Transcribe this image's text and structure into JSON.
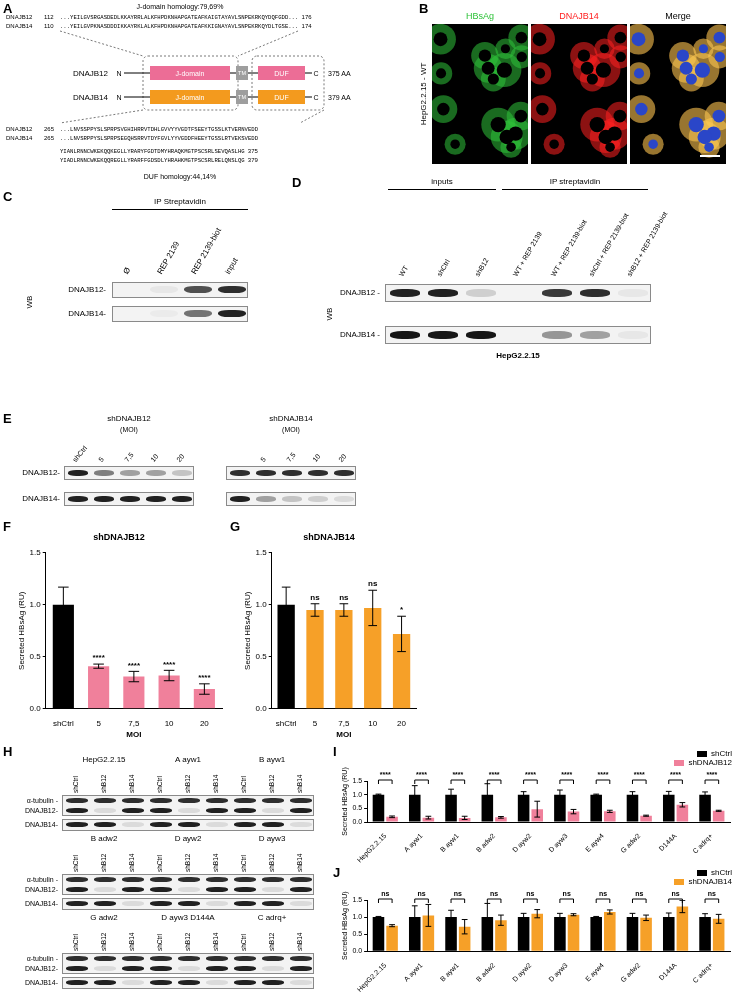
{
  "A": {
    "letter": "A",
    "top_title": "J-domain homology:79,69%",
    "top_alignment": [
      {
        "name": "DNAJB12",
        "start": 112,
        "seq": "...YEILGVSRGASDEDLKKAYRRLALKFHPDKNHAPGATEAFKAIGTAYAVLSNPEKRKQYDQFGDD...",
        "end": 176
      },
      {
        "name": "DNAJB14",
        "start": 110,
        "seq": "...YEILGVPKNASDDDIKKAYRKLALKFHPDKNHAPGATEAFKKIGNAYAVLSNPEKRKQYDLTGSE...",
        "end": 174
      }
    ],
    "proteins": [
      {
        "name": "DNAJB12",
        "length": "375 AA",
        "color": "#ec6d96"
      },
      {
        "name": "DNAJB14",
        "length": "379 AA",
        "color": "#f39a1e"
      }
    ],
    "domains": [
      "J-domain",
      "TM",
      "DUF"
    ],
    "termini": [
      "N",
      "C"
    ],
    "bottom_alignment": [
      {
        "name": "DNAJB12",
        "start": 265,
        "seq": "...LNVSSPPYSLSPRPSVGHIHRRVTDHLGVVYYVGDTFSEEYTGSSLKTVERNVEDD",
        "seq2": "YIANLRNNCWKEKQQKEGLLYRARYFGDTDMYHRAQKMGTPSCSRLSEVQASLHG",
        "end": 375
      },
      {
        "name": "DNAJB14",
        "start": 265,
        "seq": "...LNVSRPPYSLSPRPSEGQHSRRVTDYFGVLYYVGDDFHEEYTGSSLRTVEKSVEDD",
        "seq2": "YIADLRNNCWKEKQQREGLLYRARFFGDSDLYHRAHKMGTPSCSRLRELQNSLQG",
        "end": 379
      }
    ],
    "bottom_title": "DUF homology:44,14%"
  },
  "B": {
    "letter": "B",
    "side_label": "HepG2.2.15 - WT",
    "images": [
      {
        "title": "HBsAg",
        "color": "#2fc23a"
      },
      {
        "title": "DNAJB14",
        "color": "#ff2020"
      },
      {
        "title": "Merge",
        "color": "#000000"
      }
    ]
  },
  "C": {
    "letter": "C",
    "header": "IP Streptavidin",
    "side_label": "WB",
    "lanes": [
      "Ø",
      "REP 2139",
      "REP 2139-biot",
      "input"
    ],
    "rows": [
      {
        "label": "DNAJB12-",
        "bands": [
          0,
          0.05,
          0.7,
          0.85
        ]
      },
      {
        "label": "DNAJB14-",
        "bands": [
          0,
          0.03,
          0.55,
          0.9
        ]
      }
    ]
  },
  "D": {
    "letter": "D",
    "side_label": "WB",
    "groups": [
      {
        "label": "inputs",
        "lanes": [
          "WT",
          "shCtrl",
          "shB12"
        ]
      },
      {
        "label": "IP streptavidin",
        "lanes": [
          "WT + REP 2139",
          "WT + REP 2139-biot",
          "shCtrl + REP 2139-biot",
          "shB12 + REP 2139-biot"
        ]
      }
    ],
    "rows": [
      {
        "label": "DNAJB12 -",
        "bands": [
          0.9,
          0.9,
          0.15,
          0,
          0.8,
          0.85,
          0.05
        ]
      },
      {
        "label": "DNAJB14 -",
        "bands": [
          0.95,
          0.95,
          0.95,
          0,
          0.4,
          0.35,
          0.05
        ]
      }
    ],
    "footer": "HepG2.2.15"
  },
  "E": {
    "letter": "E",
    "row_labels": [
      "DNAJB12-",
      "DNAJB14-"
    ],
    "blots": [
      {
        "title": "shDNAJB12",
        "subtitle": "(MOI)",
        "lanes": [
          "shCtrl",
          "5",
          "7,5",
          "10",
          "20"
        ],
        "bands": [
          [
            0.9,
            0.5,
            0.35,
            0.35,
            0.2
          ],
          [
            0.9,
            0.9,
            0.9,
            0.9,
            0.9
          ]
        ]
      },
      {
        "title": "shDNAJB14",
        "subtitle": "(MOI)",
        "lanes": [
          null,
          "5",
          "7,5",
          "10",
          "20"
        ],
        "bands": [
          [
            0.85,
            0.85,
            0.85,
            0.85,
            0.85
          ],
          [
            0.9,
            0.35,
            0.2,
            0.15,
            0.1
          ]
        ]
      }
    ]
  },
  "H": {
    "letter": "H",
    "row_labels": [
      "α-tubulin -",
      "DNAJB12-",
      "DNAJB14-"
    ],
    "lanes": [
      "shCtrl",
      "shB12",
      "shB14"
    ],
    "groups": [
      {
        "heads": [
          "HepG2.2.15",
          "A ayw1",
          "B ayw1"
        ],
        "bands": [
          [
            0.85,
            0.85,
            0.85,
            0.85,
            0.85,
            0.85,
            0.85,
            0.85,
            0.85
          ],
          [
            0.9,
            0.1,
            0.9,
            0.9,
            0.1,
            0.9,
            0.9,
            0.1,
            0.9
          ],
          [
            0.9,
            0.9,
            0.1,
            0.9,
            0.9,
            0.1,
            0.9,
            0.9,
            0.1
          ]
        ]
      },
      {
        "heads": [
          "B adw2",
          "D ayw2",
          "D ayw3"
        ],
        "bands": [
          [
            0.85,
            0.85,
            0.85,
            0.85,
            0.85,
            0.85,
            0.85,
            0.85,
            0.85
          ],
          [
            0.9,
            0.1,
            0.9,
            0.9,
            0.1,
            0.9,
            0.9,
            0.1,
            0.9
          ],
          [
            0.9,
            0.9,
            0.1,
            0.9,
            0.9,
            0.1,
            0.9,
            0.9,
            0.1
          ]
        ]
      },
      {
        "heads": [
          "G adw2",
          "D ayw3 D144A",
          "C adrq+"
        ],
        "bands": [
          [
            0.85,
            0.85,
            0.85,
            0.85,
            0.85,
            0.85,
            0.85,
            0.85,
            0.85
          ],
          [
            0.9,
            0.1,
            0.9,
            0.9,
            0.1,
            0.9,
            0.9,
            0.1,
            0.9
          ],
          [
            0.9,
            0.9,
            0.1,
            0.9,
            0.9,
            0.1,
            0.9,
            0.9,
            0.1
          ]
        ]
      }
    ]
  },
  "chart_data": [
    {
      "letter": "F",
      "type": "bar",
      "title": "shDNAJB12",
      "x_label": "MOI",
      "y_label": "Secreted HBsAg (RU)",
      "categories": [
        "shCtrl",
        "5",
        "7,5",
        "10",
        "20"
      ],
      "values": [
        1.0,
        0.41,
        0.31,
        0.32,
        0.19
      ],
      "errors": [
        0.17,
        0.02,
        0.05,
        0.05,
        0.05
      ],
      "colors": [
        "#000000",
        "#f0809b",
        "#f0809b",
        "#f0809b",
        "#f0809b"
      ],
      "significance": [
        null,
        "****",
        "****",
        "****",
        "****"
      ],
      "ylim": [
        0,
        1.5
      ],
      "yticks": [
        {
          "value": 0,
          "label": "0.0"
        },
        0.5,
        {
          "value": 1,
          "label": "1.0"
        },
        1.5
      ],
      "grid": false
    },
    {
      "letter": "G",
      "type": "bar",
      "title": "shDNAJB14",
      "x_label": "MOI",
      "y_label": "Secreted HBsAg (RU)",
      "categories": [
        "shCtrl",
        "5",
        "7,5",
        "10",
        "20"
      ],
      "values": [
        1.0,
        0.95,
        0.95,
        0.97,
        0.72
      ],
      "errors": [
        0.17,
        0.06,
        0.06,
        0.17,
        0.17
      ],
      "colors": [
        "#000000",
        "#f6a028",
        "#f6a028",
        "#f6a028",
        "#f6a028"
      ],
      "significance": [
        null,
        "ns",
        "ns",
        "ns",
        "*"
      ],
      "ylim": [
        0,
        1.5
      ],
      "yticks": [
        {
          "value": 0,
          "label": "0.0"
        },
        0.5,
        {
          "value": 1,
          "label": "1.0"
        },
        1.5
      ],
      "grid": false
    },
    {
      "letter": "I",
      "type": "bar",
      "y_label": "Secreted HBsAg (RU)",
      "categories": [
        "HepG2.2.15",
        "A ayw1",
        "B ayw1",
        "B adw2",
        "D ayw2",
        "D ayw3",
        "E ayw4",
        "G adw2",
        "D144A",
        "C adrq+"
      ],
      "series": [
        {
          "name": "shCtrl",
          "color": "#000000",
          "values": [
            1,
            1,
            1,
            1,
            1,
            1,
            1,
            1,
            1,
            1
          ],
          "errors": [
            0.02,
            0.33,
            0.2,
            0.4,
            0.11,
            0.17,
            0.02,
            0.11,
            0.12,
            0.1
          ]
        },
        {
          "name": "shDNAJB12",
          "color": "#f0809b",
          "values": [
            0.19,
            0.16,
            0.15,
            0.17,
            0.47,
            0.38,
            0.39,
            0.23,
            0.63,
            0.41
          ],
          "errors": [
            0.03,
            0.05,
            0.06,
            0.03,
            0.29,
            0.08,
            0.04,
            0.02,
            0.08,
            0.02
          ]
        }
      ],
      "significance": [
        "****",
        "****",
        "****",
        "****",
        "****",
        "****",
        "****",
        "****",
        "****",
        "****"
      ],
      "ylim": [
        0,
        1.5
      ],
      "yticks": [
        {
          "value": 0,
          "label": "0.0"
        },
        0.5,
        {
          "value": 1,
          "label": "1.0"
        },
        1.5
      ],
      "grid": false,
      "legend": "top right"
    },
    {
      "letter": "J",
      "type": "bar",
      "y_label": "Secreted HBsAg (RU)",
      "categories": [
        "HepG2.2.15",
        "A ayw1",
        "B ayw1",
        "B adw2",
        "D ayw2",
        "D ayw3",
        "E ayw4",
        "G adw2",
        "D144A",
        "C adrq+"
      ],
      "series": [
        {
          "name": "shCtrl",
          "color": "#000000",
          "values": [
            1,
            1,
            1,
            1,
            1,
            1,
            1,
            1,
            1,
            1
          ],
          "errors": [
            0.02,
            0.33,
            0.2,
            0.4,
            0.11,
            0.11,
            0.02,
            0.11,
            0.12,
            0.1
          ]
        },
        {
          "name": "shDNAJB14",
          "color": "#f6a028",
          "values": [
            0.75,
            1.05,
            0.72,
            0.91,
            1.1,
            1.07,
            1.15,
            0.98,
            1.31,
            0.95
          ],
          "errors": [
            0.03,
            0.32,
            0.21,
            0.15,
            0.12,
            0.03,
            0.06,
            0.08,
            0.18,
            0.13
          ]
        }
      ],
      "significance": [
        "ns",
        "ns",
        "ns",
        "ns",
        "ns",
        "ns",
        "ns",
        "ns",
        "ns",
        "ns"
      ],
      "ylim": [
        0,
        1.5
      ],
      "yticks": [
        {
          "value": 0,
          "label": "0.0"
        },
        0.5,
        {
          "value": 1,
          "label": "1.0"
        },
        1.5
      ],
      "grid": false,
      "legend": "top right"
    }
  ]
}
